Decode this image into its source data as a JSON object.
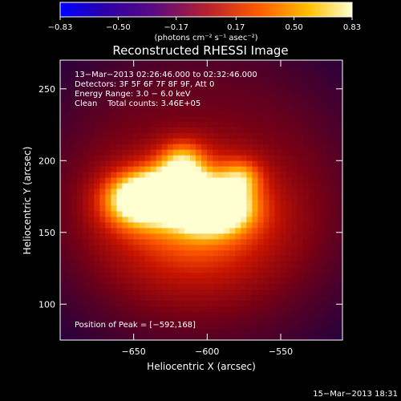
{
  "chart_data": {
    "type": "heatmap",
    "title": "Reconstructed RHESSI Image",
    "xlabel": "Heliocentric X (arcsec)",
    "ylabel": "Heliocentric Y (arcsec)",
    "xlim": [
      -700,
      -508
    ],
    "ylim": [
      75,
      270
    ],
    "x_ticks": [
      -650,
      -600,
      -550
    ],
    "x_tick_labels": [
      "−650",
      "−600",
      "−550"
    ],
    "y_ticks": [
      100,
      150,
      200,
      250
    ],
    "y_tick_labels": [
      "100",
      "150",
      "200",
      "250"
    ],
    "colorbar": {
      "min": -0.83,
      "max": 0.83,
      "ticks": [
        -0.83,
        -0.5,
        -0.17,
        0.17,
        0.5,
        0.83
      ],
      "tick_labels": [
        "−0.83",
        "−0.50",
        "−0.17",
        "0.17",
        "0.50",
        "0.83"
      ],
      "units_line": "(photons cm⁻² s⁻¹ asec⁻²)"
    },
    "annotations": [
      "13−Mar−2013 02:26:46.000 to 02:32:46.000",
      "Detectors: 3F 5F 6F 7F 8F 9F, Att 0",
      "Energy Range: 3.0 − 6.0 keV",
      "Clean    Total counts: 3.46E+05"
    ],
    "peak_label": "Position of Peak = [−592,168]",
    "peak": [
      -592,
      168
    ],
    "sources": [
      {
        "x": -596,
        "y": 166,
        "amp": 0.83,
        "sx": 18,
        "sy": 11
      },
      {
        "x": -622,
        "y": 178,
        "amp": 0.7,
        "sx": 20,
        "sy": 12
      },
      {
        "x": -650,
        "y": 172,
        "amp": 0.6,
        "sx": 16,
        "sy": 13
      },
      {
        "x": -617,
        "y": 200,
        "amp": 0.42,
        "sx": 11,
        "sy": 10
      },
      {
        "x": -577,
        "y": 188,
        "amp": 0.38,
        "sx": 10,
        "sy": 9
      },
      {
        "x": -608,
        "y": 160,
        "amp": 0.55,
        "sx": 42,
        "sy": 34
      }
    ],
    "background_level": 0.25
  },
  "footer_timestamp": "15−Mar−2013 18:31"
}
